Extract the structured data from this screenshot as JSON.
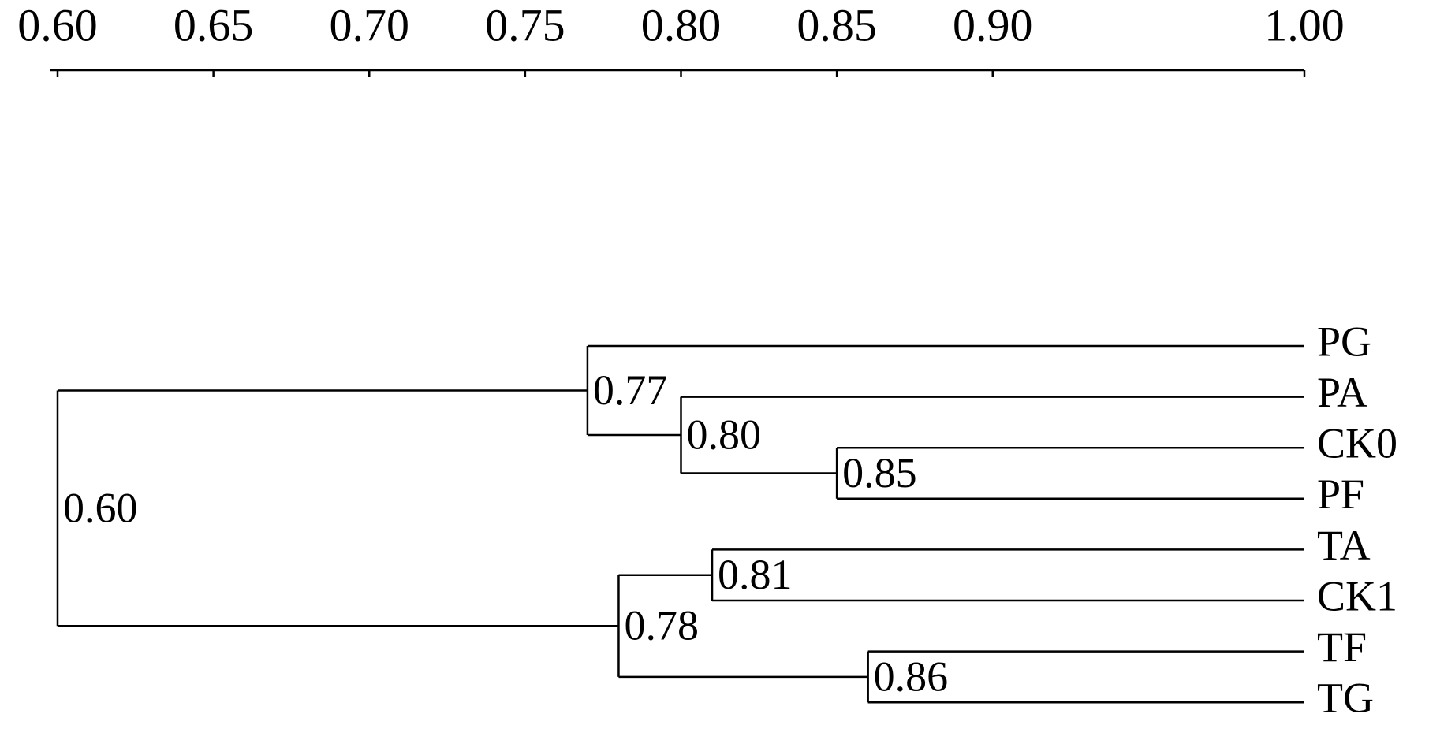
{
  "chart_data": {
    "type": "dendrogram",
    "xlim": [
      0.6,
      1.0
    ],
    "xticks": [
      {
        "value": 0.6,
        "label": "0.60"
      },
      {
        "value": 0.65,
        "label": "0.65"
      },
      {
        "value": 0.7,
        "label": "0.70"
      },
      {
        "value": 0.75,
        "label": "0.75"
      },
      {
        "value": 0.8,
        "label": "0.80"
      },
      {
        "value": 0.85,
        "label": "0.85"
      },
      {
        "value": 0.9,
        "label": "0.90"
      },
      {
        "value": 1.0,
        "label": "1.00"
      }
    ],
    "tree": {
      "value": 0.6,
      "label": "0.60",
      "children": [
        {
          "value": 0.77,
          "label": "0.77",
          "children": [
            {
              "name": "PG"
            },
            {
              "value": 0.8,
              "label": "0.80",
              "children": [
                {
                  "name": "PA"
                },
                {
                  "value": 0.85,
                  "label": "0.85",
                  "children": [
                    {
                      "name": "CK0"
                    },
                    {
                      "name": "PF"
                    }
                  ]
                }
              ]
            }
          ]
        },
        {
          "value": 0.78,
          "label": "0.78",
          "children": [
            {
              "value": 0.81,
              "label": "0.81",
              "children": [
                {
                  "name": "TA"
                },
                {
                  "name": "CK1"
                }
              ]
            },
            {
              "value": 0.86,
              "label": "0.86",
              "children": [
                {
                  "name": "TF"
                },
                {
                  "name": "TG"
                }
              ]
            }
          ]
        }
      ]
    }
  }
}
